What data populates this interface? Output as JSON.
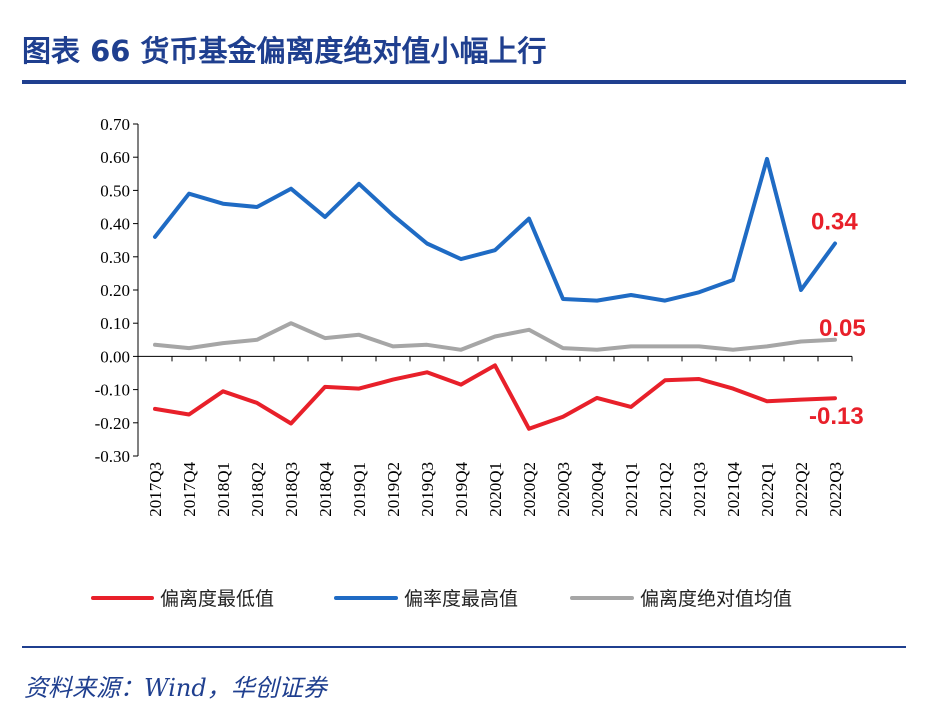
{
  "title": "图表 66  货币基金偏离度绝对值小幅上行",
  "source": "资料来源：Wind，华创证券",
  "chart_data": {
    "type": "line",
    "title": "",
    "xlabel": "",
    "ylabel": "",
    "ylim": [
      -0.3,
      0.7
    ],
    "yticks": [
      "0.70",
      "0.60",
      "0.50",
      "0.40",
      "0.30",
      "0.20",
      "0.10",
      "0.00",
      "-0.10",
      "-0.20",
      "-0.30"
    ],
    "grid": false,
    "legend_position": "bottom",
    "categories": [
      "2017Q3",
      "2017Q4",
      "2018Q1",
      "2018Q2",
      "2018Q3",
      "2018Q4",
      "2019Q1",
      "2019Q2",
      "2019Q3",
      "2019Q4",
      "2020Q1",
      "2020Q2",
      "2020Q3",
      "2020Q4",
      "2021Q1",
      "2021Q2",
      "2021Q3",
      "2021Q4",
      "2022Q1",
      "2022Q2",
      "2022Q3"
    ],
    "series": [
      {
        "name": "偏离度最低值",
        "color": "#e8202a",
        "values": [
          -0.158,
          -0.175,
          -0.105,
          -0.14,
          -0.202,
          -0.092,
          -0.097,
          -0.07,
          -0.048,
          -0.085,
          -0.027,
          -0.218,
          -0.182,
          -0.125,
          -0.152,
          -0.072,
          -0.068,
          -0.097,
          -0.135,
          -0.13,
          -0.126
        ]
      },
      {
        "name": "偏率度最高值",
        "color": "#1f6bc4",
        "values": [
          0.36,
          0.49,
          0.46,
          0.45,
          0.505,
          0.42,
          0.52,
          0.425,
          0.34,
          0.293,
          0.32,
          0.415,
          0.173,
          0.168,
          0.185,
          0.168,
          0.193,
          0.23,
          0.595,
          0.2,
          0.34
        ]
      },
      {
        "name": "偏离度绝对值均值",
        "color": "#a6a6a6",
        "values": [
          0.035,
          0.025,
          0.04,
          0.05,
          0.1,
          0.055,
          0.065,
          0.03,
          0.035,
          0.02,
          0.06,
          0.08,
          0.025,
          0.02,
          0.03,
          0.03,
          0.03,
          0.02,
          0.03,
          0.045,
          0.05
        ]
      }
    ],
    "annotations": [
      {
        "text": "0.34",
        "series": 1,
        "index": 20
      },
      {
        "text": "0.05",
        "series": 2,
        "index": 20
      },
      {
        "text": "-0.13",
        "series": 0,
        "index": 20
      }
    ]
  }
}
